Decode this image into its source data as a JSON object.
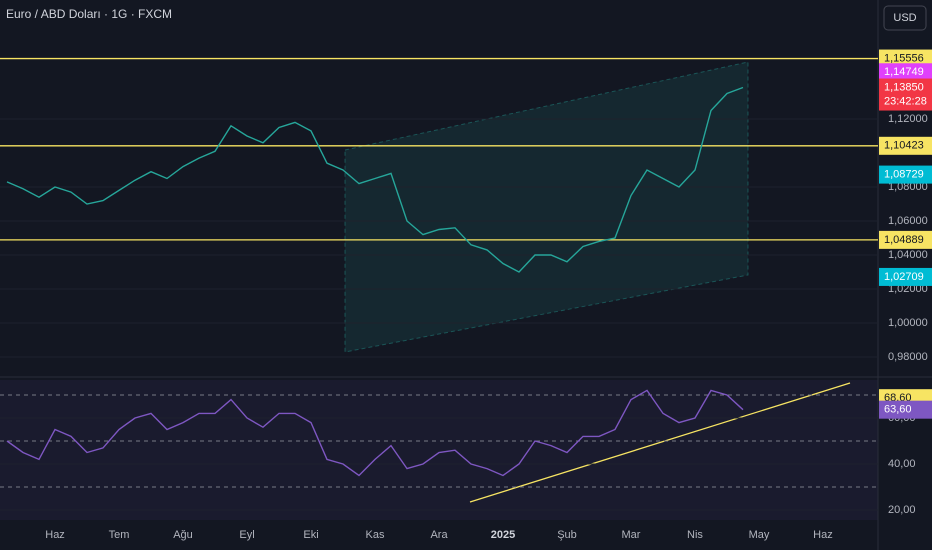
{
  "chart_data": [
    {
      "type": "line",
      "title": "Euro / ABD Doları · 1G · FXCM",
      "currency": "USD",
      "color": "#26a69a",
      "x": [
        -0.75,
        -0.5,
        -0.25,
        0,
        0.25,
        0.5,
        0.75,
        1,
        1.25,
        1.5,
        1.75,
        2,
        2.25,
        2.5,
        2.75,
        3,
        3.25,
        3.5,
        3.75,
        4,
        4.25,
        4.5,
        4.75,
        5,
        5.25,
        5.5,
        5.75,
        6,
        6.25,
        6.5,
        6.75,
        7,
        7.25,
        7.5,
        7.75,
        8,
        8.25,
        8.5,
        8.75,
        9,
        9.25,
        9.5,
        9.75,
        10,
        10.25,
        10.5,
        10.75
      ],
      "values": [
        1.083,
        1.079,
        1.074,
        1.08,
        1.077,
        1.07,
        1.072,
        1.078,
        1.084,
        1.089,
        1.085,
        1.092,
        1.097,
        1.101,
        1.116,
        1.11,
        1.106,
        1.115,
        1.118,
        1.113,
        1.094,
        1.09,
        1.082,
        1.085,
        1.088,
        1.06,
        1.052,
        1.055,
        1.056,
        1.046,
        1.043,
        1.035,
        1.03,
        1.04,
        1.04,
        1.036,
        1.045,
        1.048,
        1.05,
        1.075,
        1.09,
        1.085,
        1.08,
        1.09,
        1.125,
        1.135,
        1.1385
      ],
      "xlim": [
        -0.86,
        12.86
      ],
      "ylim": [
        0.9694,
        1.19
      ],
      "yticks": [
        {
          "value": 1.12,
          "label": "1,12000"
        },
        {
          "value": 1.08,
          "label": "1,08000"
        },
        {
          "value": 1.06,
          "label": "1,06000"
        },
        {
          "value": 1.04,
          "label": "1,04000"
        },
        {
          "value": 1.02,
          "label": "1,02000"
        },
        {
          "value": 1.0,
          "label": "1,00000"
        },
        {
          "value": 0.98,
          "label": "0,98000"
        }
      ],
      "hlines": [
        {
          "value": 1.15556,
          "label": "1,15556"
        },
        {
          "value": 1.10423,
          "label": "1,10423"
        },
        {
          "value": 1.04889,
          "label": "1,04889"
        }
      ],
      "price_labels": [
        {
          "value": 1.14749,
          "label": "1,14749",
          "color": "#e040fb"
        },
        {
          "value": 1.1385,
          "label": "1,13850",
          "color": "#f23645"
        },
        {
          "value": 1.08729,
          "label": "1,08729",
          "color": "#00bcd4"
        },
        {
          "value": 1.02709,
          "label": "1,02709",
          "color": "#00bcd4"
        }
      ],
      "countdown": "23:42:28"
    },
    {
      "type": "line",
      "color": "#7e57c2",
      "x": [
        -0.75,
        -0.5,
        -0.25,
        0,
        0.25,
        0.5,
        0.75,
        1,
        1.25,
        1.5,
        1.75,
        2,
        2.25,
        2.5,
        2.75,
        3,
        3.25,
        3.5,
        3.75,
        4,
        4.25,
        4.5,
        4.75,
        5,
        5.25,
        5.5,
        5.75,
        6,
        6.25,
        6.5,
        6.75,
        7,
        7.25,
        7.5,
        7.75,
        8,
        8.25,
        8.5,
        8.75,
        9,
        9.25,
        9.5,
        9.75,
        10,
        10.25,
        10.5,
        10.75
      ],
      "values": [
        50,
        45,
        42,
        55,
        52,
        45,
        47,
        55,
        60,
        62,
        55,
        58,
        62,
        62,
        68,
        60,
        56,
        62,
        62,
        58,
        42,
        40,
        35,
        42,
        48,
        38,
        40,
        45,
        46,
        40,
        38,
        35,
        40,
        50,
        48,
        45,
        52,
        52,
        55,
        68,
        72,
        62,
        58,
        60,
        72,
        70,
        63.6
      ],
      "xlim": [
        -0.86,
        12.86
      ],
      "ylim": [
        15.65,
        76.5
      ],
      "yticks": [
        {
          "value": 60,
          "label": "60,00"
        },
        {
          "value": 40,
          "label": "40,00"
        },
        {
          "value": 20,
          "label": "20,00"
        }
      ],
      "levels": [
        70,
        50,
        30
      ],
      "price_labels": [
        {
          "value": 68.6,
          "label": "68,60",
          "color": "#f7e463"
        },
        {
          "value": 63.6,
          "label": "63,60",
          "color": "#7e57c2"
        }
      ],
      "xticks": [
        {
          "value": 0,
          "label": "Haz"
        },
        {
          "value": 1,
          "label": "Tem"
        },
        {
          "value": 2,
          "label": "Ağu"
        },
        {
          "value": 3,
          "label": "Eyl"
        },
        {
          "value": 4,
          "label": "Eki"
        },
        {
          "value": 5,
          "label": "Kas"
        },
        {
          "value": 6,
          "label": "Ara"
        },
        {
          "value": 7,
          "label": "2025"
        },
        {
          "value": 8,
          "label": "Şub"
        },
        {
          "value": 9,
          "label": "Mar"
        },
        {
          "value": 10,
          "label": "Nis"
        },
        {
          "value": 11,
          "label": "May"
        },
        {
          "value": 12,
          "label": "Haz"
        }
      ]
    }
  ]
}
